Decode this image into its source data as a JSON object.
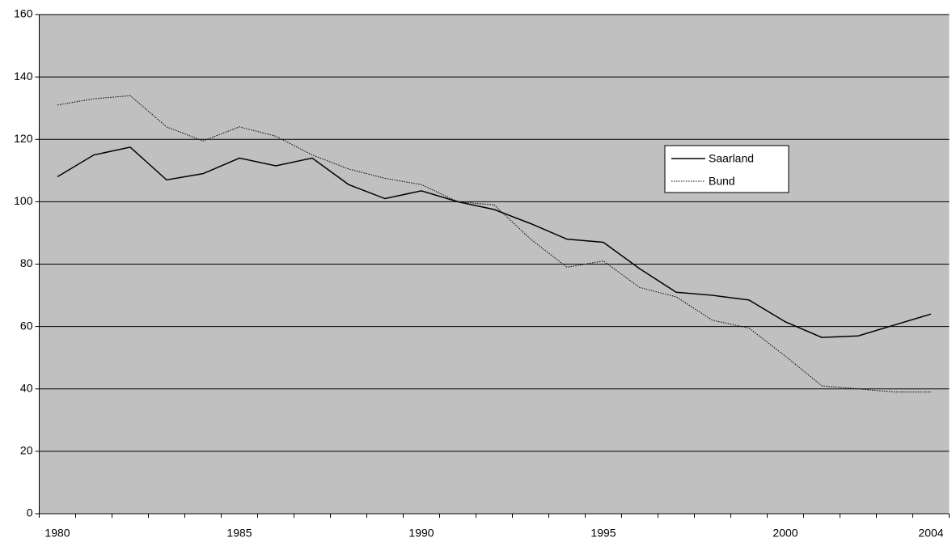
{
  "chart_data": {
    "type": "line",
    "categories": [
      "1980",
      null,
      null,
      null,
      null,
      "1985",
      null,
      null,
      null,
      null,
      "1990",
      null,
      null,
      null,
      null,
      "1995",
      null,
      null,
      null,
      null,
      "2000",
      null,
      null,
      null,
      "2004"
    ],
    "series": [
      {
        "name": "Saarland",
        "color": "#000000",
        "dash": "solid",
        "values": [
          108,
          115,
          117.5,
          107,
          109,
          114,
          111.5,
          114,
          105.5,
          101,
          103.5,
          100,
          97.5,
          93,
          88,
          87,
          78.5,
          71,
          70,
          68.5,
          61.5,
          56.5,
          57,
          60.5,
          64
        ]
      },
      {
        "name": "Bund",
        "color": "#000000",
        "dash": "dotted",
        "values": [
          131,
          133,
          134,
          124,
          119.5,
          124,
          121,
          115,
          110.5,
          107.5,
          105.5,
          100,
          99,
          88,
          79,
          81,
          72.5,
          69.5,
          62,
          59.5,
          50.5,
          41,
          40,
          39,
          39
        ]
      }
    ],
    "ylim": [
      0,
      160
    ],
    "yticks": [
      0,
      20,
      40,
      60,
      80,
      100,
      120,
      140,
      160
    ],
    "grid": true,
    "background": "#c0c0c0",
    "legend": "right"
  }
}
